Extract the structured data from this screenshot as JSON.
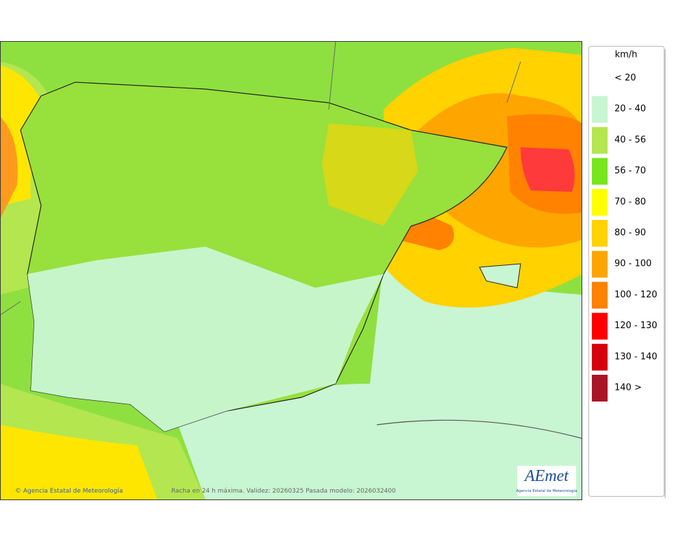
{
  "legend": {
    "unit": "km/h",
    "items": [
      {
        "label": "< 20",
        "color": "#ffffff"
      },
      {
        "label": "20 - 40",
        "color": "#c8f5d2"
      },
      {
        "label": "40 - 56",
        "color": "#b4e650"
      },
      {
        "label": "56 - 70",
        "color": "#78e61e"
      },
      {
        "label": "70 - 80",
        "color": "#ffff00"
      },
      {
        "label": "80 - 90",
        "color": "#ffd200"
      },
      {
        "label": "90 - 100",
        "color": "#ffa500"
      },
      {
        "label": "100 - 120",
        "color": "#ff8200"
      },
      {
        "label": "120 - 130",
        "color": "#ff0000"
      },
      {
        "label": "130 - 140",
        "color": "#d7000f"
      },
      {
        "label": "140 >",
        "color": "#aa1428"
      }
    ]
  },
  "footer": {
    "credit": "© Agencia Estatal de Meteorología",
    "caption": "Racha en 24 h máxima. Validez: 20260325 Pasada modelo: 2026032400"
  },
  "logo": {
    "name": "AEmet",
    "subtitle": "Agencia Estatal de Meteorología"
  }
}
